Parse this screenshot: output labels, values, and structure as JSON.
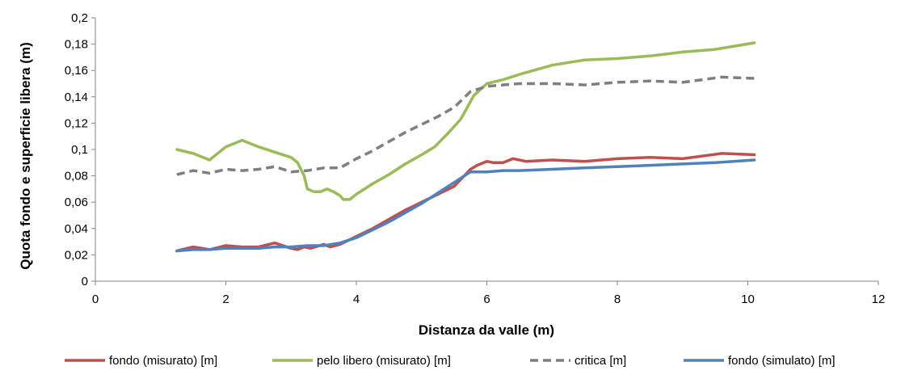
{
  "chart_data": {
    "type": "line",
    "title": "",
    "xlabel": "Distanza da valle (m)",
    "ylabel": "Quota fondo e superficie libera (m)",
    "xlim": [
      0,
      12
    ],
    "ylim": [
      0,
      0.2
    ],
    "x_ticks": [
      0,
      2,
      4,
      6,
      8,
      10,
      12
    ],
    "x_tick_labels": [
      "0",
      "2",
      "4",
      "6",
      "8",
      "10",
      "12"
    ],
    "y_ticks": [
      0,
      0.02,
      0.04,
      0.06,
      0.08,
      0.1,
      0.12,
      0.14,
      0.16,
      0.18,
      0.2
    ],
    "y_tick_labels": [
      "0",
      "0,02",
      "0,04",
      "0,06",
      "0,08",
      "0,1",
      "0,12",
      "0,14",
      "0,16",
      "0,18",
      "0,2"
    ],
    "grid": false,
    "legend_position": "bottom",
    "series": [
      {
        "name": "fondo (misurato) [m]",
        "color": "#c0504d",
        "dash": "solid",
        "points": [
          [
            1.25,
            0.023
          ],
          [
            1.5,
            0.026
          ],
          [
            1.75,
            0.024
          ],
          [
            2.0,
            0.027
          ],
          [
            2.25,
            0.026
          ],
          [
            2.5,
            0.026
          ],
          [
            2.75,
            0.029
          ],
          [
            3.0,
            0.025
          ],
          [
            3.1,
            0.024
          ],
          [
            3.2,
            0.026
          ],
          [
            3.3,
            0.025
          ],
          [
            3.5,
            0.028
          ],
          [
            3.6,
            0.026
          ],
          [
            3.75,
            0.028
          ],
          [
            4.0,
            0.034
          ],
          [
            4.25,
            0.04
          ],
          [
            4.5,
            0.047
          ],
          [
            4.75,
            0.054
          ],
          [
            5.0,
            0.06
          ],
          [
            5.25,
            0.066
          ],
          [
            5.5,
            0.072
          ],
          [
            5.75,
            0.085
          ],
          [
            5.85,
            0.088
          ],
          [
            6.0,
            0.091
          ],
          [
            6.1,
            0.09
          ],
          [
            6.25,
            0.09
          ],
          [
            6.4,
            0.093
          ],
          [
            6.6,
            0.091
          ],
          [
            7.0,
            0.092
          ],
          [
            7.5,
            0.091
          ],
          [
            8.0,
            0.093
          ],
          [
            8.5,
            0.094
          ],
          [
            9.0,
            0.093
          ],
          [
            9.6,
            0.097
          ],
          [
            10.1,
            0.096
          ]
        ]
      },
      {
        "name": "pelo libero (misurato) [m]",
        "color": "#9bbb59",
        "dash": "solid",
        "points": [
          [
            1.25,
            0.1
          ],
          [
            1.5,
            0.097
          ],
          [
            1.75,
            0.092
          ],
          [
            2.0,
            0.102
          ],
          [
            2.25,
            0.107
          ],
          [
            2.5,
            0.102
          ],
          [
            2.75,
            0.098
          ],
          [
            3.0,
            0.094
          ],
          [
            3.1,
            0.09
          ],
          [
            3.2,
            0.08
          ],
          [
            3.25,
            0.07
          ],
          [
            3.35,
            0.068
          ],
          [
            3.45,
            0.068
          ],
          [
            3.55,
            0.07
          ],
          [
            3.65,
            0.068
          ],
          [
            3.75,
            0.065
          ],
          [
            3.8,
            0.062
          ],
          [
            3.9,
            0.062
          ],
          [
            4.0,
            0.066
          ],
          [
            4.25,
            0.074
          ],
          [
            4.5,
            0.081
          ],
          [
            4.75,
            0.089
          ],
          [
            5.0,
            0.096
          ],
          [
            5.2,
            0.102
          ],
          [
            5.4,
            0.112
          ],
          [
            5.6,
            0.123
          ],
          [
            5.8,
            0.141
          ],
          [
            6.0,
            0.15
          ],
          [
            6.25,
            0.153
          ],
          [
            6.5,
            0.157
          ],
          [
            7.0,
            0.164
          ],
          [
            7.5,
            0.168
          ],
          [
            8.0,
            0.169
          ],
          [
            8.5,
            0.171
          ],
          [
            9.0,
            0.174
          ],
          [
            9.5,
            0.176
          ],
          [
            10.1,
            0.181
          ]
        ]
      },
      {
        "name": "critica [m]",
        "color": "#7f7f7f",
        "dash": "dashed",
        "points": [
          [
            1.25,
            0.081
          ],
          [
            1.5,
            0.084
          ],
          [
            1.75,
            0.082
          ],
          [
            2.0,
            0.085
          ],
          [
            2.25,
            0.084
          ],
          [
            2.5,
            0.085
          ],
          [
            2.75,
            0.087
          ],
          [
            3.0,
            0.083
          ],
          [
            3.25,
            0.084
          ],
          [
            3.5,
            0.086
          ],
          [
            3.75,
            0.086
          ],
          [
            4.0,
            0.093
          ],
          [
            4.25,
            0.099
          ],
          [
            4.5,
            0.106
          ],
          [
            4.75,
            0.113
          ],
          [
            5.0,
            0.119
          ],
          [
            5.25,
            0.125
          ],
          [
            5.5,
            0.132
          ],
          [
            5.75,
            0.144
          ],
          [
            6.0,
            0.148
          ],
          [
            6.25,
            0.149
          ],
          [
            6.5,
            0.15
          ],
          [
            7.0,
            0.15
          ],
          [
            7.5,
            0.149
          ],
          [
            8.0,
            0.151
          ],
          [
            8.5,
            0.152
          ],
          [
            9.0,
            0.151
          ],
          [
            9.6,
            0.155
          ],
          [
            10.1,
            0.154
          ]
        ]
      },
      {
        "name": "fondo (simulato) [m]",
        "color": "#4f81bd",
        "dash": "solid",
        "points": [
          [
            1.25,
            0.023
          ],
          [
            1.5,
            0.024
          ],
          [
            1.75,
            0.024
          ],
          [
            2.0,
            0.025
          ],
          [
            2.25,
            0.025
          ],
          [
            2.5,
            0.025
          ],
          [
            2.75,
            0.026
          ],
          [
            3.0,
            0.026
          ],
          [
            3.25,
            0.027
          ],
          [
            3.5,
            0.027
          ],
          [
            3.75,
            0.029
          ],
          [
            4.0,
            0.033
          ],
          [
            4.25,
            0.039
          ],
          [
            4.5,
            0.045
          ],
          [
            4.75,
            0.052
          ],
          [
            5.0,
            0.059
          ],
          [
            5.25,
            0.067
          ],
          [
            5.5,
            0.075
          ],
          [
            5.75,
            0.083
          ],
          [
            6.0,
            0.083
          ],
          [
            6.25,
            0.084
          ],
          [
            6.5,
            0.084
          ],
          [
            7.0,
            0.085
          ],
          [
            7.5,
            0.086
          ],
          [
            8.0,
            0.087
          ],
          [
            8.5,
            0.088
          ],
          [
            9.0,
            0.089
          ],
          [
            9.5,
            0.09
          ],
          [
            10.1,
            0.092
          ]
        ]
      }
    ]
  }
}
